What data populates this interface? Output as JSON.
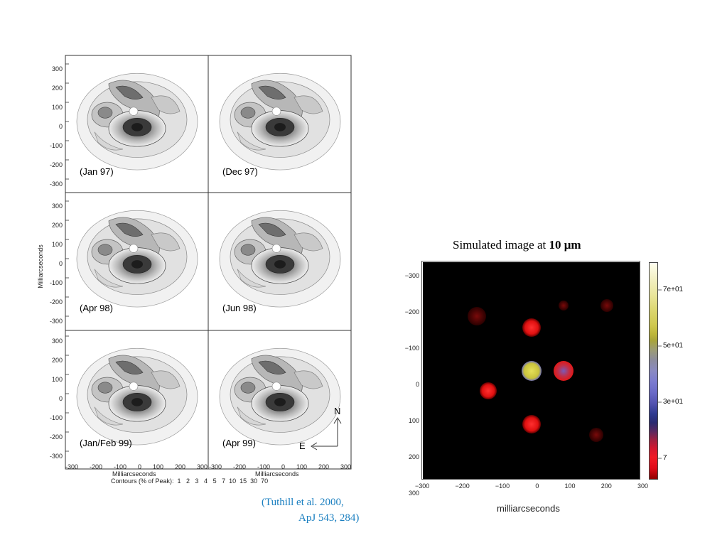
{
  "left_figure": {
    "y_axis_label": "Milliarcseconds",
    "x_axis_label": "Milliarcseconds",
    "contours_label": "Contours (% of Peak):  1   2   3   4   5   7  10  15  30  70",
    "tick_labels_y": [
      "300",
      "200",
      "100",
      "0",
      "-100",
      "-200",
      "-300"
    ],
    "tick_labels_x": [
      "-300",
      "-200",
      "-100",
      "0",
      "100",
      "200",
      "300"
    ],
    "panels": [
      {
        "label": "(Jan 97)"
      },
      {
        "label": "(Dec 97)"
      },
      {
        "label": "(Apr 98)"
      },
      {
        "label": "(Jun 98)"
      },
      {
        "label": "(Jan/Feb 99)"
      },
      {
        "label": "(Apr 99)"
      }
    ],
    "compass": {
      "north": "N",
      "east": "E"
    }
  },
  "citation": {
    "line1": "(Tuthill et al. 2000,",
    "line2": "ApJ 543, 284)"
  },
  "right_figure": {
    "title_prefix": "Simulated image at ",
    "title_bold": "10 μm",
    "x_axis_label": "milliarcseconds",
    "tick_labels_y": [
      "−300",
      "−200",
      "−100",
      "0",
      "100",
      "200",
      "300"
    ],
    "tick_labels_x": [
      "−300",
      "−200",
      "−100",
      "0",
      "100",
      "200",
      "300"
    ],
    "colorbar_labels": [
      "7e+01",
      "5e+01",
      "3e+01",
      "7"
    ]
  }
}
